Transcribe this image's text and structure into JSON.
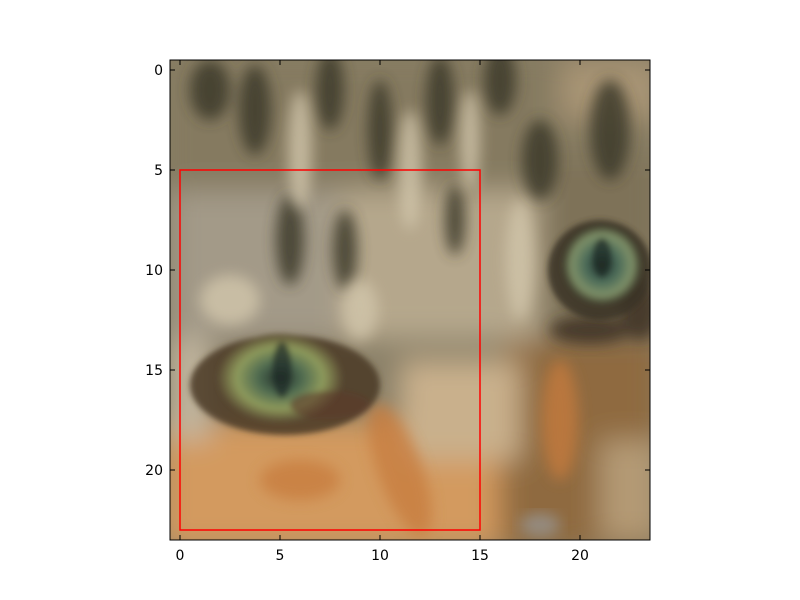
{
  "figure": {
    "title": "",
    "image_description_colors": {
      "fur_gray": "#8a8068",
      "fur_dark": "#3e3a2c",
      "fur_light": "#c8bba0",
      "fur_orange": "#d89a5a",
      "eye_green": "#6e8a58",
      "eye_dark": "#2c3a2e"
    }
  },
  "chart_data": {
    "type": "image",
    "image_grid_size": [
      24,
      24
    ],
    "xlim": [
      -0.5,
      23.5
    ],
    "ylim": [
      23.5,
      -0.5
    ],
    "xticks": [
      0,
      5,
      10,
      15,
      20
    ],
    "yticks": [
      0,
      5,
      10,
      15,
      20
    ],
    "xlabel": "",
    "ylabel": "",
    "grid": false,
    "annotations": [
      {
        "type": "rectangle",
        "x0": 0,
        "y0": 5,
        "x1": 15,
        "y1": 23,
        "color": "#ff0000"
      }
    ]
  }
}
